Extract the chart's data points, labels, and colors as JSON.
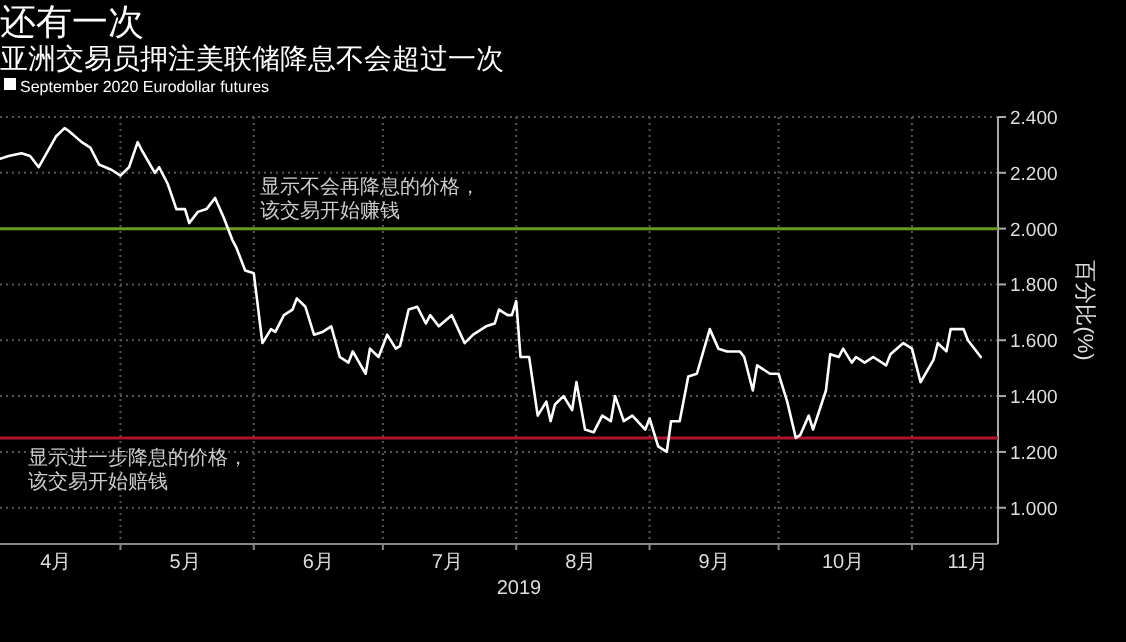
{
  "chart_data": {
    "type": "line",
    "title": "还有一次",
    "subtitle": "亚洲交易员押注美联储降息不会超过一次",
    "xlabel": "2019",
    "ylabel": "百分比(%)",
    "legend": "top left",
    "grid": true,
    "marker": "none",
    "line_style": "solid",
    "xlim": [
      "2019-04-03",
      "2019-11-21"
    ],
    "xticks": [
      {
        "value": "2019-04-16",
        "label": "4月"
      },
      {
        "value": "2019-05-01",
        "label": null
      },
      {
        "value": "2019-05-16",
        "label": "5月"
      },
      {
        "value": "2019-06-01",
        "label": null
      },
      {
        "value": "2019-06-16",
        "label": "6月"
      },
      {
        "value": "2019-07-01",
        "label": null
      },
      {
        "value": "2019-07-16",
        "label": "7月"
      },
      {
        "value": "2019-08-01",
        "label": null
      },
      {
        "value": "2019-08-16",
        "label": "8月"
      },
      {
        "value": "2019-09-01",
        "label": null
      },
      {
        "value": "2019-09-16",
        "label": "9月"
      },
      {
        "value": "2019-10-01",
        "label": null
      },
      {
        "value": "2019-10-16",
        "label": "10月"
      },
      {
        "value": "2019-11-01",
        "label": null
      },
      {
        "value": "2019-11-14",
        "label": "11月"
      }
    ],
    "ylim": [
      0.87,
      2.4
    ],
    "yticks": [
      {
        "value": 1.0,
        "label": "1.000"
      },
      {
        "value": 1.2,
        "label": "1.200"
      },
      {
        "value": 1.4,
        "label": "1.400"
      },
      {
        "value": 1.6,
        "label": "1.600"
      },
      {
        "value": 1.8,
        "label": "1.800"
      },
      {
        "value": 2.0,
        "label": "2.000"
      },
      {
        "value": 2.2,
        "label": "2.200"
      },
      {
        "value": 2.4,
        "label": "2.400"
      }
    ],
    "ref_lines": [
      {
        "axis": "y",
        "value": 2.0,
        "label": "显示不会再降息的价格，该交易开始赚钱",
        "color": "#6a9a1f",
        "line_style": "solid"
      },
      {
        "axis": "y",
        "value": 1.25,
        "label": "显示进一步降息的价格，该交易开始赔钱",
        "color": "#b0142c",
        "line_style": "solid"
      }
    ],
    "series": [
      {
        "name": "September 2020 Eurodollar futures",
        "color": "#ffffff",
        "x": [
          "2019-04-03",
          "2019-04-05",
          "2019-04-08",
          "2019-04-10",
          "2019-04-12",
          "2019-04-16",
          "2019-04-18",
          "2019-04-19",
          "2019-04-22",
          "2019-04-24",
          "2019-04-26",
          "2019-04-29",
          "2019-05-01",
          "2019-05-03",
          "2019-05-05",
          "2019-05-06",
          "2019-05-09",
          "2019-05-10",
          "2019-05-12",
          "2019-05-14",
          "2019-05-16",
          "2019-05-17",
          "2019-05-19",
          "2019-05-21",
          "2019-05-23",
          "2019-05-25",
          "2019-05-27",
          "2019-05-28",
          "2019-05-30",
          "2019-06-01",
          "2019-06-03",
          "2019-06-05",
          "2019-06-06",
          "2019-06-08",
          "2019-06-10",
          "2019-06-11",
          "2019-06-13",
          "2019-06-15",
          "2019-06-17",
          "2019-06-19",
          "2019-06-21",
          "2019-06-23",
          "2019-06-24",
          "2019-06-27",
          "2019-06-28",
          "2019-06-30",
          "2019-07-02",
          "2019-07-04",
          "2019-07-05",
          "2019-07-07",
          "2019-07-09",
          "2019-07-11",
          "2019-07-12",
          "2019-07-14",
          "2019-07-17",
          "2019-07-20",
          "2019-07-22",
          "2019-07-25",
          "2019-07-27",
          "2019-07-28",
          "2019-07-30",
          "2019-07-31",
          "2019-08-01",
          "2019-08-02",
          "2019-08-04",
          "2019-08-06",
          "2019-08-08",
          "2019-08-09",
          "2019-08-10",
          "2019-08-12",
          "2019-08-14",
          "2019-08-15",
          "2019-08-17",
          "2019-08-19",
          "2019-08-21",
          "2019-08-23",
          "2019-08-24",
          "2019-08-26",
          "2019-08-28",
          "2019-08-31",
          "2019-09-01",
          "2019-09-03",
          "2019-09-05",
          "2019-09-06",
          "2019-09-08",
          "2019-09-10",
          "2019-09-12",
          "2019-09-15",
          "2019-09-17",
          "2019-09-19",
          "2019-09-22",
          "2019-09-23",
          "2019-09-25",
          "2019-09-26",
          "2019-09-29",
          "2019-10-01",
          "2019-10-03",
          "2019-10-05",
          "2019-10-06",
          "2019-10-08",
          "2019-10-09",
          "2019-10-12",
          "2019-10-13",
          "2019-10-15",
          "2019-10-16",
          "2019-10-18",
          "2019-10-19",
          "2019-10-21",
          "2019-10-23",
          "2019-10-26",
          "2019-10-27",
          "2019-10-30",
          "2019-11-01",
          "2019-11-03",
          "2019-11-06",
          "2019-11-07",
          "2019-11-09",
          "2019-11-10",
          "2019-11-13",
          "2019-11-14",
          "2019-11-17"
        ],
        "values": [
          2.25,
          2.26,
          2.27,
          2.26,
          2.22,
          2.33,
          2.36,
          2.35,
          2.31,
          2.29,
          2.23,
          2.21,
          2.19,
          2.22,
          2.31,
          2.28,
          2.2,
          2.22,
          2.16,
          2.07,
          2.07,
          2.02,
          2.06,
          2.07,
          2.11,
          2.04,
          1.96,
          1.93,
          1.85,
          1.84,
          1.59,
          1.64,
          1.63,
          1.69,
          1.71,
          1.75,
          1.72,
          1.62,
          1.63,
          1.65,
          1.54,
          1.52,
          1.56,
          1.48,
          1.57,
          1.54,
          1.62,
          1.57,
          1.58,
          1.71,
          1.72,
          1.66,
          1.69,
          1.65,
          1.69,
          1.59,
          1.62,
          1.65,
          1.66,
          1.71,
          1.69,
          1.69,
          1.74,
          1.54,
          1.54,
          1.33,
          1.38,
          1.31,
          1.37,
          1.4,
          1.35,
          1.45,
          1.28,
          1.27,
          1.33,
          1.31,
          1.4,
          1.31,
          1.33,
          1.28,
          1.32,
          1.22,
          1.2,
          1.31,
          1.31,
          1.47,
          1.48,
          1.64,
          1.57,
          1.56,
          1.56,
          1.54,
          1.42,
          1.51,
          1.48,
          1.48,
          1.38,
          1.25,
          1.26,
          1.33,
          1.28,
          1.42,
          1.55,
          1.54,
          1.57,
          1.52,
          1.54,
          1.52,
          1.54,
          1.51,
          1.55,
          1.59,
          1.57,
          1.45,
          1.53,
          1.59,
          1.56,
          1.64,
          1.64,
          1.6,
          1.54
        ]
      }
    ]
  }
}
